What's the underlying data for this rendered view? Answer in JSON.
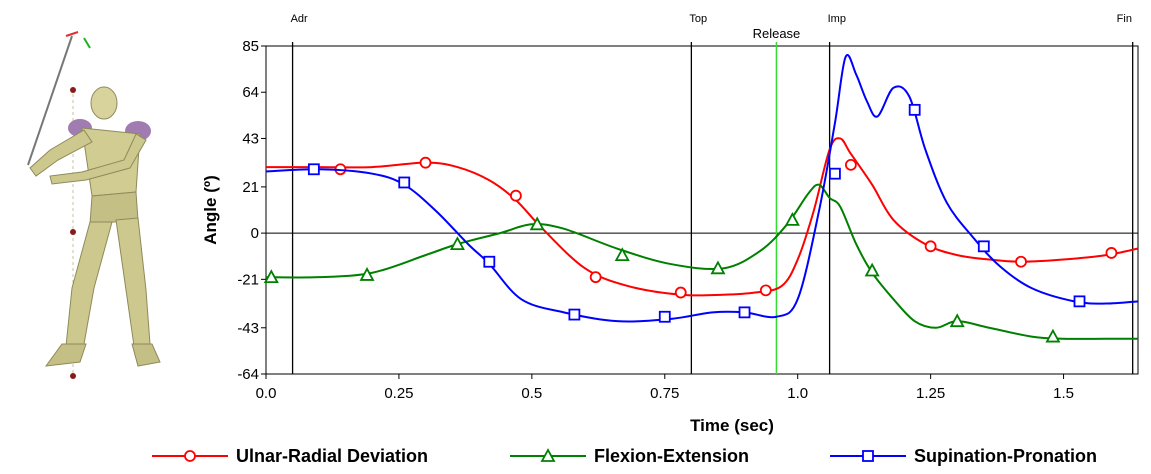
{
  "chart_data": {
    "type": "line",
    "xlabel": "Time (sec)",
    "ylabel": "Angle (º)",
    "xlim": [
      0.0,
      1.64
    ],
    "ylim": [
      -64,
      85
    ],
    "x_ticks": [
      0.0,
      0.25,
      0.5,
      0.75,
      1.0,
      1.25,
      1.5
    ],
    "x_tick_labels": [
      "0.0",
      "0.25",
      "0.5",
      "0.75",
      "1.0",
      "1.25",
      "1.5"
    ],
    "y_ticks": [
      85,
      64,
      43,
      21,
      0,
      -21,
      -43,
      -64
    ],
    "y_tick_labels": [
      "85",
      "64",
      "43",
      "21",
      "0",
      "-21",
      "-43",
      "-64"
    ],
    "legend_position": "bottom",
    "phase_markers": [
      {
        "label": "Adr",
        "x": 0.05,
        "color": "#000000"
      },
      {
        "label": "Top",
        "x": 0.8,
        "color": "#000000"
      },
      {
        "label": "Imp",
        "x": 1.06,
        "color": "#000000"
      },
      {
        "label": "Fin",
        "x": 1.63,
        "color": "#000000"
      }
    ],
    "release_marker": {
      "label": "Release",
      "x": 0.96,
      "color": "#33dd33"
    },
    "series": [
      {
        "name": "Ulnar-Radial Deviation",
        "color": "#ff0000",
        "marker": "circle",
        "x": [
          0.0,
          0.1,
          0.2,
          0.3,
          0.36,
          0.42,
          0.47,
          0.52,
          0.6,
          0.68,
          0.78,
          0.86,
          0.92,
          0.97,
          1.0,
          1.03,
          1.06,
          1.08,
          1.1,
          1.14,
          1.18,
          1.24,
          1.3,
          1.36,
          1.42,
          1.5,
          1.58,
          1.64
        ],
        "y": [
          30,
          30,
          30,
          32,
          30,
          24,
          15,
          2,
          -16,
          -24,
          -28,
          -28,
          -27,
          -24,
          -12,
          10,
          38,
          43,
          36,
          22,
          6,
          -5,
          -10,
          -12,
          -13,
          -12,
          -10,
          -7
        ],
        "markers_x": [
          0.14,
          0.3,
          0.47,
          0.62,
          0.78,
          0.94,
          1.1,
          1.25,
          1.42,
          1.59
        ],
        "markers_y": [
          29,
          32,
          17,
          -20,
          -27,
          -26,
          31,
          -6,
          -13,
          -9
        ]
      },
      {
        "name": "Flexion-Extension",
        "color": "#008000",
        "marker": "triangle",
        "x": [
          0.0,
          0.1,
          0.2,
          0.3,
          0.36,
          0.44,
          0.5,
          0.56,
          0.66,
          0.76,
          0.86,
          0.93,
          0.98,
          1.02,
          1.04,
          1.06,
          1.08,
          1.11,
          1.14,
          1.18,
          1.22,
          1.26,
          1.3,
          1.36,
          1.44,
          1.5,
          1.58,
          1.64
        ],
        "y": [
          -20,
          -20,
          -18,
          -10,
          -5,
          0,
          4,
          2,
          -7,
          -14,
          -16,
          -8,
          4,
          18,
          22,
          16,
          12,
          -5,
          -18,
          -30,
          -40,
          -43,
          -40,
          -43,
          -47,
          -48,
          -48,
          -48
        ],
        "markers_x": [
          0.01,
          0.19,
          0.36,
          0.51,
          0.67,
          0.85,
          0.99,
          1.14,
          1.3,
          1.48
        ],
        "markers_y": [
          -20,
          -19,
          -5,
          4,
          -10,
          -16,
          6,
          -17,
          -40,
          -47
        ]
      },
      {
        "name": "Supination-Pronation",
        "color": "#0000ff",
        "marker": "square",
        "x": [
          0.0,
          0.1,
          0.2,
          0.26,
          0.32,
          0.38,
          0.42,
          0.48,
          0.56,
          0.66,
          0.76,
          0.84,
          0.9,
          0.96,
          1.0,
          1.04,
          1.07,
          1.09,
          1.11,
          1.13,
          1.15,
          1.18,
          1.21,
          1.24,
          1.28,
          1.33,
          1.38,
          1.44,
          1.52,
          1.58,
          1.64
        ],
        "y": [
          28,
          29,
          27,
          22,
          10,
          -5,
          -14,
          -30,
          -36,
          -40,
          -39,
          -36,
          -36,
          -38,
          -30,
          10,
          50,
          80,
          72,
          60,
          53,
          66,
          62,
          38,
          14,
          -2,
          -15,
          -25,
          -31,
          -32,
          -31
        ],
        "markers_x": [
          0.09,
          0.26,
          0.42,
          0.58,
          0.75,
          0.9,
          1.07,
          1.22,
          1.35,
          1.53
        ],
        "markers_y": [
          29,
          23,
          -13,
          -37,
          -38,
          -36,
          27,
          56,
          -6,
          -31
        ]
      }
    ]
  }
}
